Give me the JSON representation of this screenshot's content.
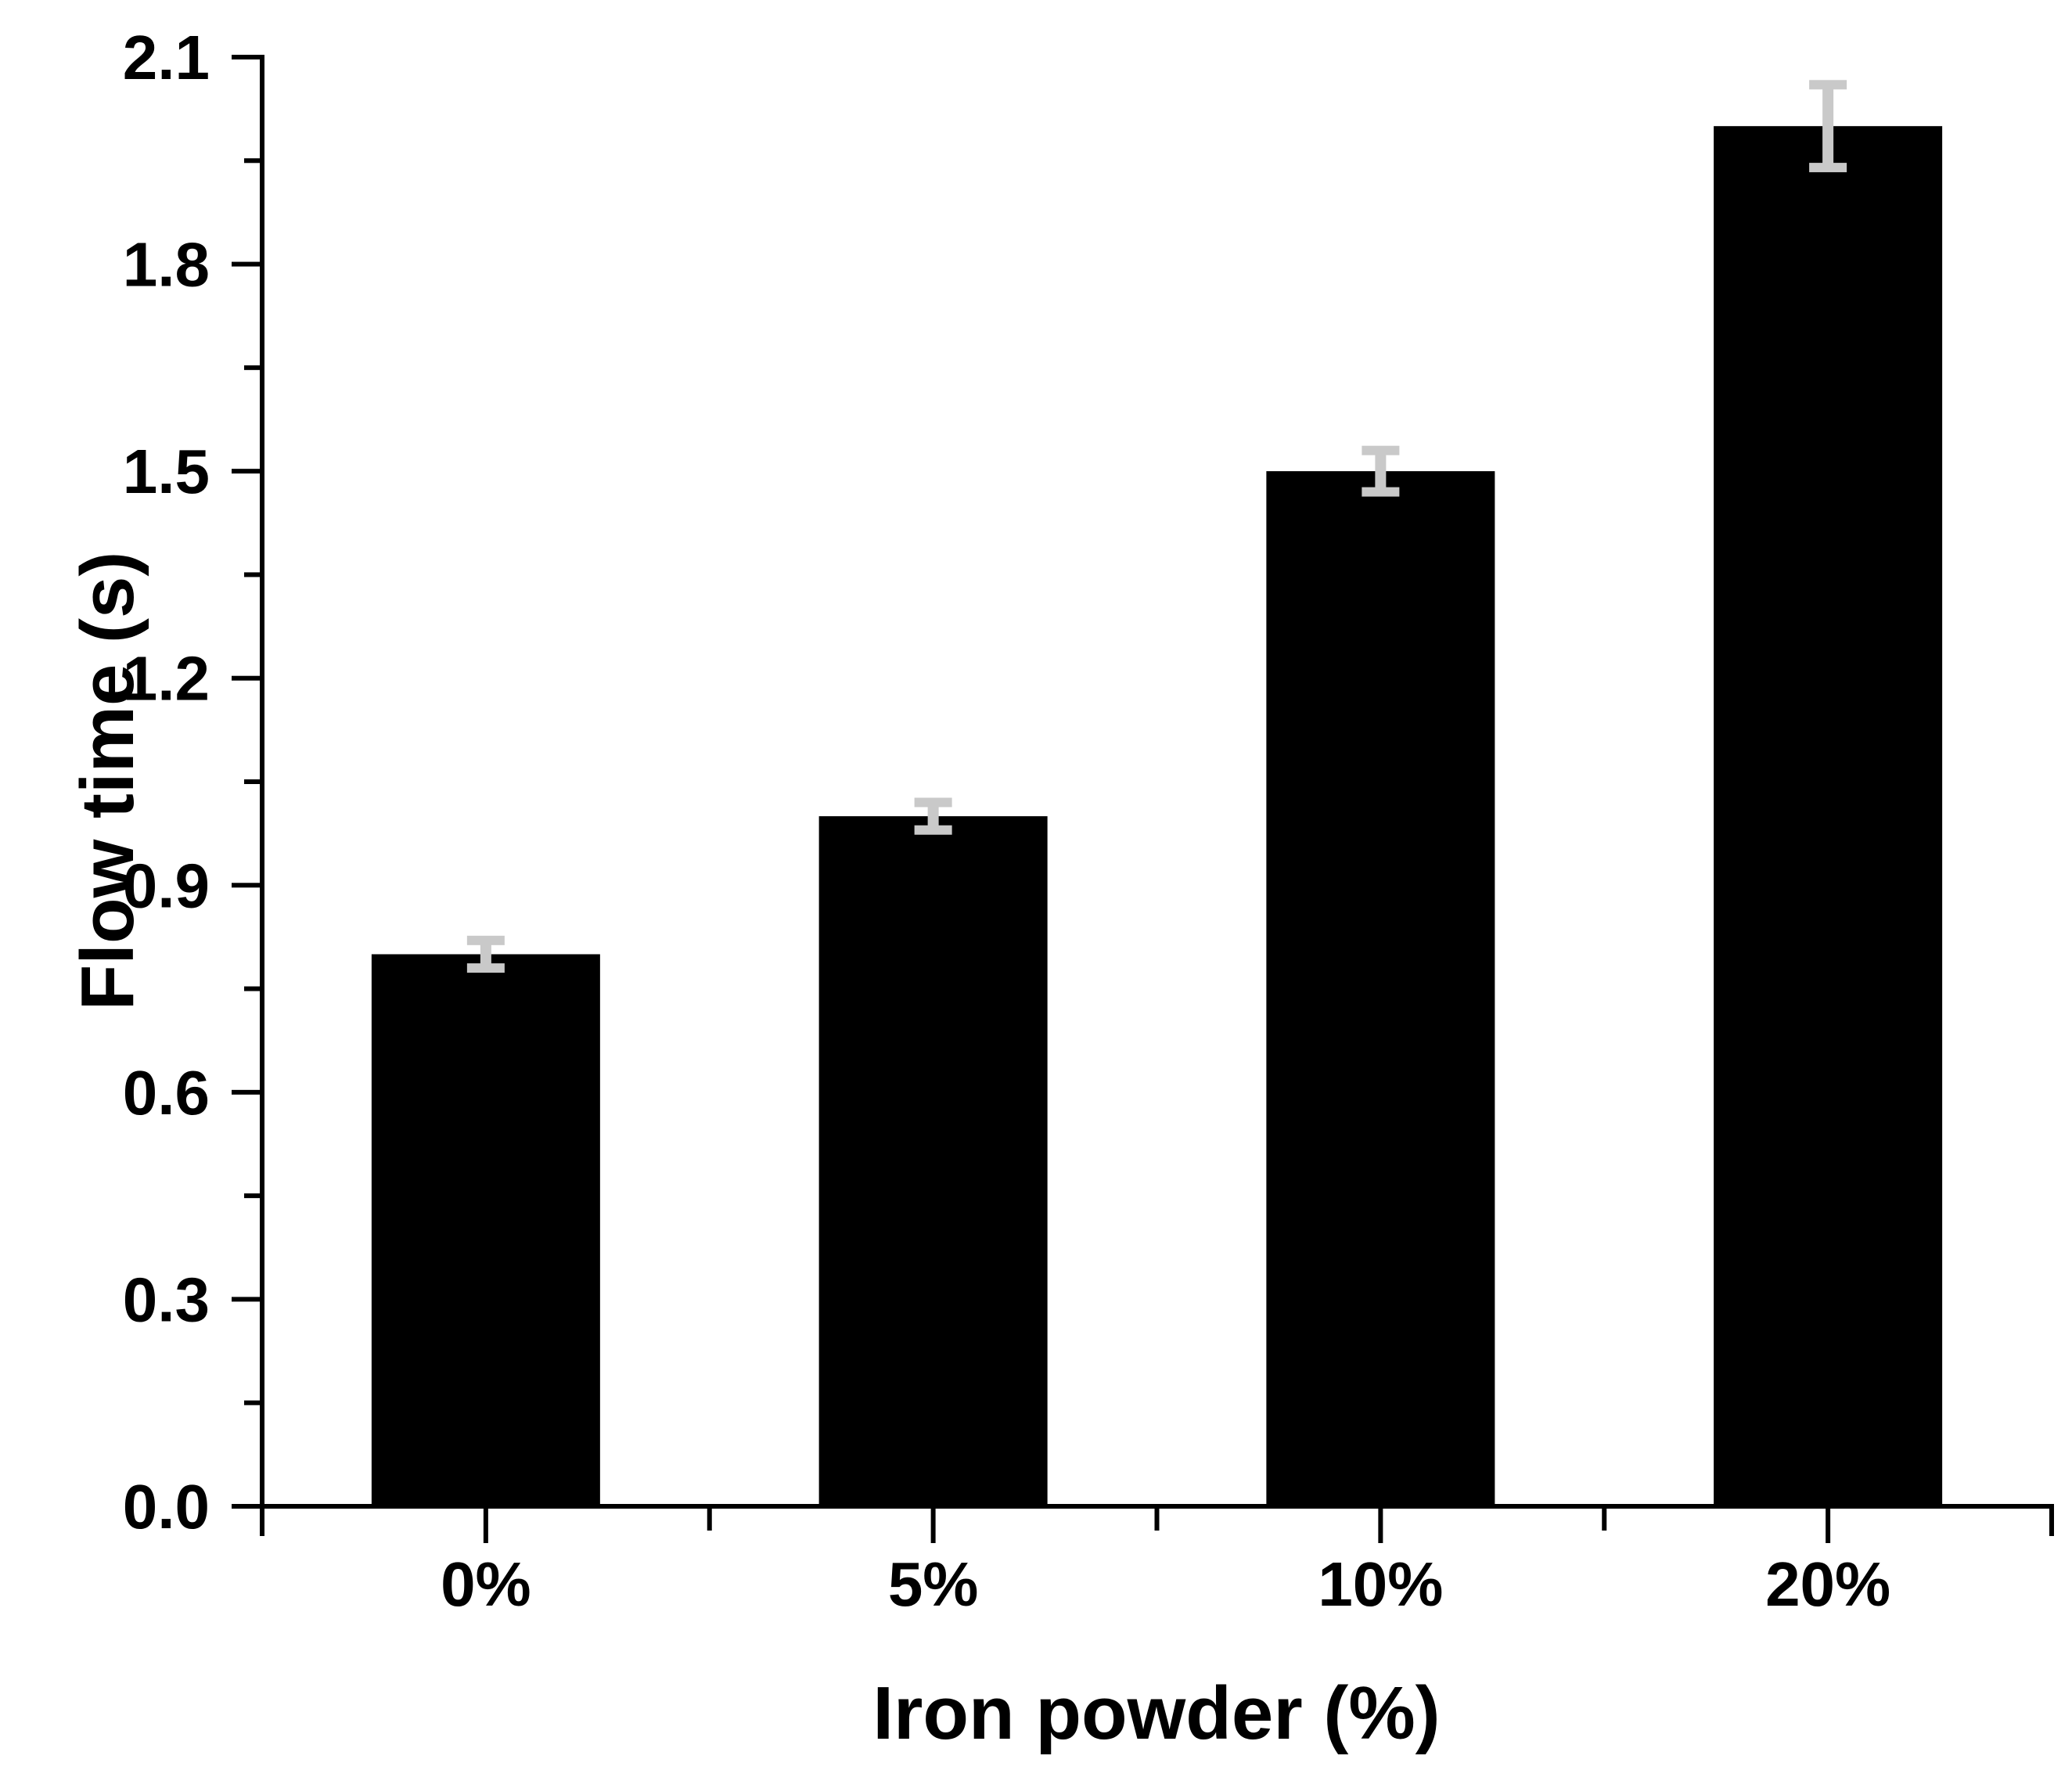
{
  "chart_data": {
    "type": "bar",
    "xlabel": "Iron powder (%)",
    "ylabel": "Flow time (s)",
    "categories": [
      "0%",
      "5%",
      "10%",
      "20%"
    ],
    "values": [
      0.8,
      1.0,
      1.5,
      2.0
    ],
    "errors": [
      0.02,
      0.02,
      0.03,
      0.06
    ],
    "ylim": [
      0.0,
      2.1
    ],
    "y_major_ticks": [
      0.0,
      0.3,
      0.6,
      0.9,
      1.2,
      1.5,
      1.8,
      2.1
    ],
    "y_tick_labels": [
      "0.0",
      "0.3",
      "0.6",
      "0.9",
      "1.2",
      "1.5",
      "1.8",
      "2.1"
    ],
    "y_minor_tick_step": 0.15,
    "grid": false,
    "legend": false,
    "colors": {
      "bar": "#000000",
      "error_bar": "#c9c9c9",
      "axis": "#000000",
      "background": "#ffffff",
      "text": "#000000"
    }
  }
}
